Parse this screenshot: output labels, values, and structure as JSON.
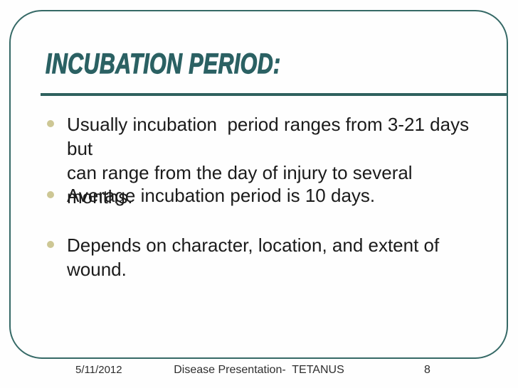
{
  "slide": {
    "title": "INCUBATION PERIOD:",
    "bullets": [
      {
        "text": "Usually incubation  period ranges from 3-21 days but\ncan range from the day of injury to several months."
      },
      {
        "text": "Average incubation period is 10 days."
      },
      {
        "text": "Depends on character, location, and extent of\nwound."
      }
    ],
    "footer": {
      "date": "5/11/2012",
      "presentation_title": "Disease Presentation-  TETANUS",
      "slide_number": "8"
    },
    "colors": {
      "accent_teal": "#2b6163",
      "underline_teal": "#2f615e",
      "frame_border_teal": "#356966",
      "bullet_khaki": "#cdc795",
      "body_text": "#1b1b1b"
    }
  }
}
